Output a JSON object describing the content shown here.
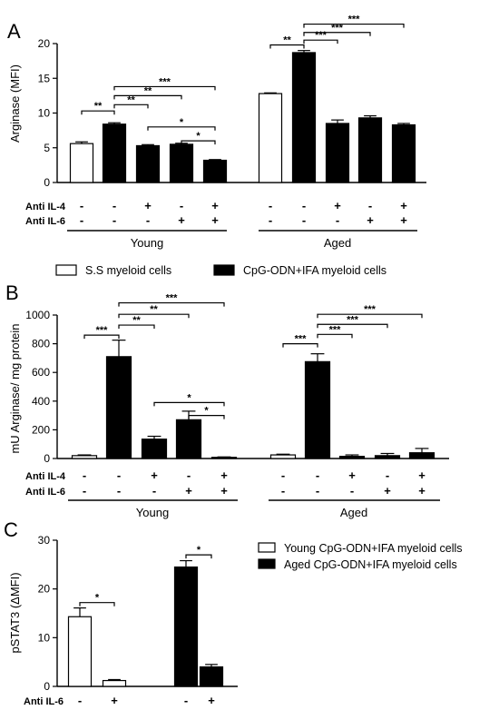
{
  "treatment_labels": {
    "il4": "Anti IL-4",
    "il6": "Anti IL-6"
  },
  "chart_data": [
    {
      "id": "A",
      "type": "bar",
      "panel_label": "A",
      "ylabel": "Arginase (MFI)",
      "ylim": [
        0,
        20
      ],
      "yticks": [
        0,
        5,
        10,
        15,
        20
      ],
      "groups": [
        {
          "name": "Young",
          "bars": [
            {
              "fill": "white",
              "value": 5.6,
              "err": 0.25,
              "il4": "-",
              "il6": "-"
            },
            {
              "fill": "black",
              "value": 8.4,
              "err": 0.2,
              "il4": "-",
              "il6": "-"
            },
            {
              "fill": "black",
              "value": 5.3,
              "err": 0.15,
              "il4": "+",
              "il6": "-"
            },
            {
              "fill": "black",
              "value": 5.5,
              "err": 0.15,
              "il4": "-",
              "il6": "+"
            },
            {
              "fill": "black",
              "value": 3.2,
              "err": 0.1,
              "il4": "+",
              "il6": "+"
            }
          ]
        },
        {
          "name": "Aged",
          "bars": [
            {
              "fill": "white",
              "value": 12.8,
              "err": 0.1,
              "il4": "-",
              "il6": "-"
            },
            {
              "fill": "black",
              "value": 18.7,
              "err": 0.3,
              "il4": "-",
              "il6": "-"
            },
            {
              "fill": "black",
              "value": 8.5,
              "err": 0.5,
              "il4": "+",
              "il6": "-"
            },
            {
              "fill": "black",
              "value": 9.3,
              "err": 0.3,
              "il4": "-",
              "il6": "+"
            },
            {
              "fill": "black",
              "value": 8.3,
              "err": 0.2,
              "il4": "+",
              "il6": "+"
            }
          ]
        }
      ],
      "significance": [
        {
          "from": [
            0,
            0
          ],
          "to": [
            0,
            1
          ],
          "y": 10.3,
          "label": "**"
        },
        {
          "from": [
            0,
            1
          ],
          "to": [
            0,
            2
          ],
          "y": 11.2,
          "label": "**"
        },
        {
          "from": [
            0,
            1
          ],
          "to": [
            0,
            3
          ],
          "y": 12.5,
          "label": "**"
        },
        {
          "from": [
            0,
            1
          ],
          "to": [
            0,
            4
          ],
          "y": 13.8,
          "label": "***"
        },
        {
          "from": [
            0,
            2
          ],
          "to": [
            0,
            4
          ],
          "y": 8.0,
          "label": "*"
        },
        {
          "from": [
            0,
            3
          ],
          "to": [
            0,
            4
          ],
          "y": 6.0,
          "label": "*"
        },
        {
          "from": [
            1,
            0
          ],
          "to": [
            1,
            1
          ],
          "y": 19.8,
          "label": "**"
        },
        {
          "from": [
            1,
            1
          ],
          "to": [
            1,
            2
          ],
          "y": 20.5,
          "label": "***"
        },
        {
          "from": [
            1,
            1
          ],
          "to": [
            1,
            3
          ],
          "y": 21.6,
          "label": "***"
        },
        {
          "from": [
            1,
            1
          ],
          "to": [
            1,
            4
          ],
          "y": 22.8,
          "label": "***"
        }
      ]
    },
    {
      "id": "B",
      "type": "bar",
      "panel_label": "B",
      "ylabel": "mU Arginase/ mg protein",
      "ylim": [
        0,
        1000
      ],
      "yticks": [
        0,
        200,
        400,
        600,
        800,
        1000
      ],
      "groups": [
        {
          "name": "Young",
          "bars": [
            {
              "fill": "white",
              "value": 20,
              "err": 5,
              "il4": "-",
              "il6": "-"
            },
            {
              "fill": "black",
              "value": 710,
              "err": 115,
              "il4": "-",
              "il6": "-"
            },
            {
              "fill": "black",
              "value": 135,
              "err": 20,
              "il4": "+",
              "il6": "-"
            },
            {
              "fill": "black",
              "value": 270,
              "err": 60,
              "il4": "-",
              "il6": "+"
            },
            {
              "fill": "black",
              "value": 8,
              "err": 3,
              "il4": "+",
              "il6": "+"
            }
          ]
        },
        {
          "name": "Aged",
          "bars": [
            {
              "fill": "white",
              "value": 25,
              "err": 5,
              "il4": "-",
              "il6": "-"
            },
            {
              "fill": "black",
              "value": 675,
              "err": 55,
              "il4": "-",
              "il6": "-"
            },
            {
              "fill": "black",
              "value": 15,
              "err": 10,
              "il4": "+",
              "il6": "-"
            },
            {
              "fill": "black",
              "value": 20,
              "err": 15,
              "il4": "-",
              "il6": "+"
            },
            {
              "fill": "black",
              "value": 40,
              "err": 30,
              "il4": "+",
              "il6": "+"
            }
          ]
        }
      ],
      "significance": [
        {
          "from": [
            0,
            0
          ],
          "to": [
            0,
            1
          ],
          "y": 860,
          "label": "***"
        },
        {
          "from": [
            0,
            1
          ],
          "to": [
            0,
            2
          ],
          "y": 930,
          "label": "**"
        },
        {
          "from": [
            0,
            1
          ],
          "to": [
            0,
            3
          ],
          "y": 1005,
          "label": "**"
        },
        {
          "from": [
            0,
            1
          ],
          "to": [
            0,
            4
          ],
          "y": 1085,
          "label": "***"
        },
        {
          "from": [
            0,
            2
          ],
          "to": [
            0,
            4
          ],
          "y": 390,
          "label": "*"
        },
        {
          "from": [
            0,
            3
          ],
          "to": [
            0,
            4
          ],
          "y": 300,
          "label": "*"
        },
        {
          "from": [
            1,
            0
          ],
          "to": [
            1,
            1
          ],
          "y": 800,
          "label": "***"
        },
        {
          "from": [
            1,
            1
          ],
          "to": [
            1,
            2
          ],
          "y": 865,
          "label": "***"
        },
        {
          "from": [
            1,
            1
          ],
          "to": [
            1,
            3
          ],
          "y": 935,
          "label": "***"
        },
        {
          "from": [
            1,
            1
          ],
          "to": [
            1,
            4
          ],
          "y": 1005,
          "label": "***"
        }
      ]
    },
    {
      "id": "C",
      "type": "bar",
      "panel_label": "C",
      "ylabel": "pSTAT3 (ΔMFI)",
      "ylim": [
        0,
        30
      ],
      "yticks": [
        0,
        10,
        20,
        30
      ],
      "groups": [
        {
          "name": "",
          "bars": [
            {
              "fill": "white",
              "value": 14.3,
              "err": 1.8,
              "il6": "-"
            },
            {
              "fill": "white",
              "value": 1.2,
              "err": 0.2,
              "il6": "+"
            }
          ]
        },
        {
          "name": "",
          "bars": [
            {
              "fill": "black",
              "value": 24.5,
              "err": 1.3,
              "il6": "-"
            },
            {
              "fill": "black",
              "value": 4.0,
              "err": 0.5,
              "il6": "+"
            }
          ]
        }
      ],
      "significance": [
        {
          "from": [
            0,
            0
          ],
          "to": [
            0,
            1
          ],
          "y": 17.2,
          "label": "*"
        },
        {
          "from": [
            1,
            0
          ],
          "to": [
            1,
            1
          ],
          "y": 27.0,
          "label": "*"
        }
      ],
      "legend": [
        {
          "fill": "white",
          "label": "Young CpG-ODN+IFA myeloid cells"
        },
        {
          "fill": "black",
          "label": "Aged CpG-ODN+IFA myeloid cells"
        }
      ]
    }
  ],
  "legend_ab": [
    {
      "fill": "white",
      "label": "S.S myeloid cells"
    },
    {
      "fill": "black",
      "label": "CpG-ODN+IFA myeloid cells"
    }
  ],
  "colors": {
    "white_bar": "#ffffff",
    "black_bar": "#000000"
  }
}
